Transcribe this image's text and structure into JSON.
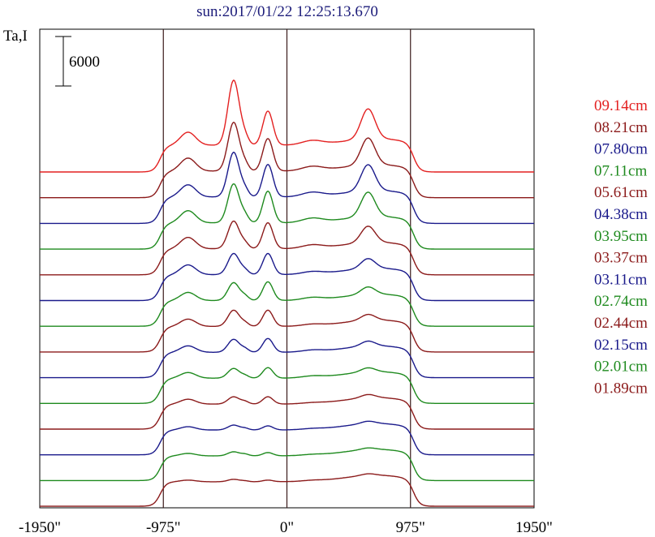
{
  "chart_data": {
    "type": "line",
    "title": "sun:2017/01/22 12:25:13.670",
    "ylabel": "Ta,I",
    "scale_bar_label": "6000",
    "x_range": [
      -1950,
      1950
    ],
    "x_ticks": [
      {
        "value": -1950,
        "label": "-1950\""
      },
      {
        "value": -975,
        "label": "-975\""
      },
      {
        "value": 0,
        "label": "0\""
      },
      {
        "value": 975,
        "label": "975\""
      },
      {
        "value": 1950,
        "label": "1950\""
      }
    ],
    "vertical_lines": [
      -975,
      0,
      975
    ],
    "series": [
      {
        "name": "09.14cm",
        "color": "#e32020",
        "peaks": [
          8,
          4.2,
          3.7,
          1.6,
          0.5,
          0.9
        ]
      },
      {
        "name": "08.21cm",
        "color": "#8b1a1a",
        "peaks": [
          6.0,
          4.0,
          3.3,
          1.6,
          0.5,
          0.8
        ]
      },
      {
        "name": "07.80cm",
        "color": "#1a1a8b",
        "peaks": [
          5.5,
          4.0,
          3.2,
          1.5,
          0.5,
          0.8
        ]
      },
      {
        "name": "07.11cm",
        "color": "#1e8a1e",
        "peaks": [
          4.8,
          3.9,
          3.0,
          1.5,
          0.5,
          0.8
        ]
      },
      {
        "name": "05.61cm",
        "color": "#8b1a1a",
        "peaks": [
          3.4,
          3.2,
          2.0,
          1.4,
          0.4,
          0.6
        ]
      },
      {
        "name": "04.38cm",
        "color": "#1a1a8b",
        "peaks": [
          2.6,
          2.6,
          1.2,
          1.2,
          0.3,
          0.5
        ]
      },
      {
        "name": "03.95cm",
        "color": "#1e8a1e",
        "peaks": [
          2.2,
          2.3,
          0.9,
          1.0,
          0.3,
          0.5
        ]
      },
      {
        "name": "03.37cm",
        "color": "#8b1a1a",
        "peaks": [
          2.0,
          2.0,
          0.7,
          0.9,
          0.2,
          0.4
        ]
      },
      {
        "name": "03.11cm",
        "color": "#1a1a8b",
        "peaks": [
          1.6,
          1.7,
          0.6,
          0.8,
          0.2,
          0.4
        ]
      },
      {
        "name": "02.74cm",
        "color": "#1e8a1e",
        "peaks": [
          1.2,
          1.3,
          0.5,
          0.7,
          0.2,
          0.3
        ]
      },
      {
        "name": "02.44cm",
        "color": "#8b1a1a",
        "peaks": [
          0.9,
          0.9,
          0.4,
          0.6,
          0.1,
          0.3
        ]
      },
      {
        "name": "02.15cm",
        "color": "#1a1a8b",
        "peaks": [
          0.6,
          0.5,
          0.3,
          0.4,
          0.1,
          0.2
        ]
      },
      {
        "name": "02.01cm",
        "color": "#1e8a1e",
        "peaks": [
          0.5,
          0.4,
          0.2,
          0.3,
          0.1,
          0.2
        ]
      },
      {
        "name": "01.89cm",
        "color": "#8b1a1a",
        "peaks": [
          0.3,
          0.2,
          0.2,
          0.2,
          0.1,
          0.1
        ]
      }
    ],
    "grid": false,
    "legend_position": "right"
  }
}
